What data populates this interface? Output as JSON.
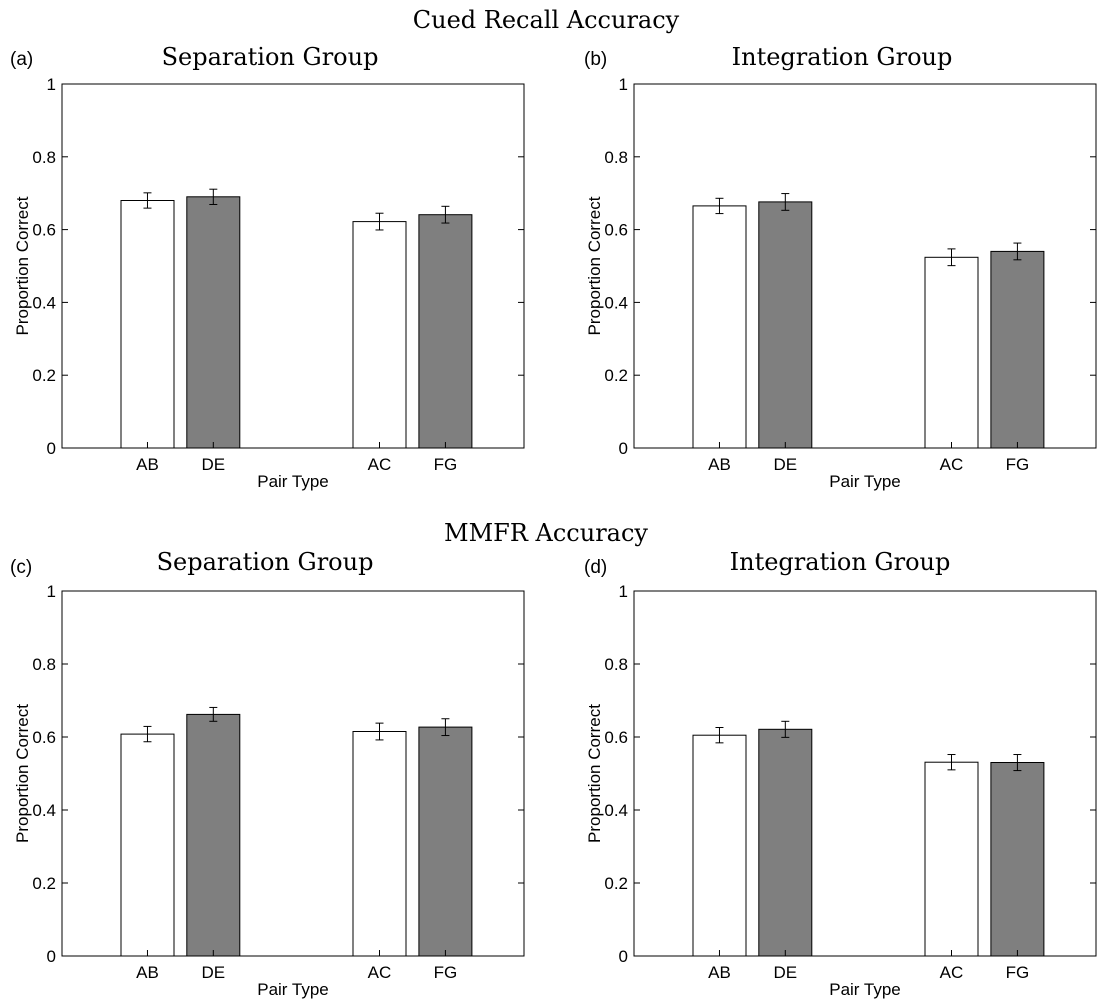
{
  "section_titles": [
    "Cued Recall Accuracy",
    "MMFR Accuracy"
  ],
  "colors": {
    "bar_white": "#ffffff",
    "bar_gray": "#7f7f7f",
    "axis": "#000000"
  },
  "chart_data": [
    {
      "type": "bar",
      "panel_label": "(a)",
      "title": "Separation Group",
      "xlabel": "Pair Type",
      "ylabel": "Proportion Correct",
      "ylim": [
        0,
        1
      ],
      "yticks": [
        "0",
        "0.2",
        "0.4",
        "0.6",
        "0.8",
        "1"
      ],
      "categories": [
        "AB",
        "DE",
        "AC",
        "FG"
      ],
      "values": [
        0.68,
        0.69,
        0.622,
        0.641
      ],
      "errors": [
        0.021,
        0.021,
        0.023,
        0.023
      ],
      "bar_colors": [
        "white",
        "gray",
        "white",
        "gray"
      ]
    },
    {
      "type": "bar",
      "panel_label": "(b)",
      "title": "Integration Group",
      "xlabel": "Pair Type",
      "ylabel": "Proportion Correct",
      "ylim": [
        0,
        1
      ],
      "yticks": [
        "0",
        "0.2",
        "0.4",
        "0.6",
        "0.8",
        "1"
      ],
      "categories": [
        "AB",
        "DE",
        "AC",
        "FG"
      ],
      "values": [
        0.665,
        0.676,
        0.524,
        0.54
      ],
      "errors": [
        0.021,
        0.023,
        0.023,
        0.023
      ],
      "bar_colors": [
        "white",
        "gray",
        "white",
        "gray"
      ]
    },
    {
      "type": "bar",
      "panel_label": "(c)",
      "title": "Separation Group",
      "xlabel": "Pair Type",
      "ylabel": "Proportion Correct",
      "ylim": [
        0,
        1
      ],
      "yticks": [
        "0",
        "0.2",
        "0.4",
        "0.6",
        "0.8",
        "1"
      ],
      "categories": [
        "AB",
        "DE",
        "AC",
        "FG"
      ],
      "values": [
        0.608,
        0.662,
        0.615,
        0.627
      ],
      "errors": [
        0.021,
        0.019,
        0.023,
        0.023
      ],
      "bar_colors": [
        "white",
        "gray",
        "white",
        "gray"
      ]
    },
    {
      "type": "bar",
      "panel_label": "(d)",
      "title": "Integration Group",
      "xlabel": "Pair Type",
      "ylabel": "Proportion Correct",
      "ylim": [
        0,
        1
      ],
      "yticks": [
        "0",
        "0.2",
        "0.4",
        "0.6",
        "0.8",
        "1"
      ],
      "categories": [
        "AB",
        "DE",
        "AC",
        "FG"
      ],
      "values": [
        0.605,
        0.621,
        0.531,
        0.53
      ],
      "errors": [
        0.021,
        0.022,
        0.021,
        0.022
      ],
      "bar_colors": [
        "white",
        "gray",
        "white",
        "gray"
      ]
    }
  ]
}
